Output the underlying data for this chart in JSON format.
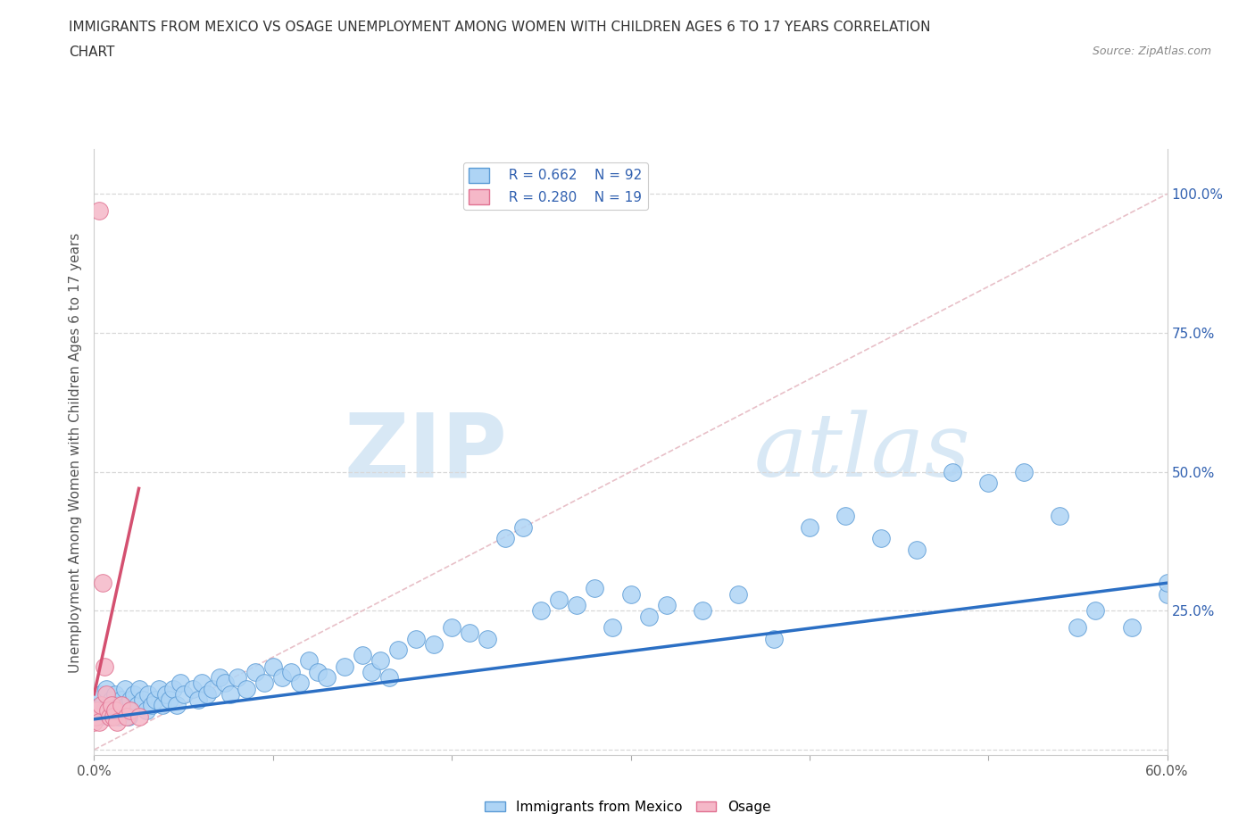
{
  "title_line1": "IMMIGRANTS FROM MEXICO VS OSAGE UNEMPLOYMENT AMONG WOMEN WITH CHILDREN AGES 6 TO 17 YEARS CORRELATION",
  "title_line2": "CHART",
  "source": "Source: ZipAtlas.com",
  "ylabel": "Unemployment Among Women with Children Ages 6 to 17 years",
  "xmin": 0.0,
  "xmax": 0.6,
  "ymin": -0.01,
  "ymax": 1.08,
  "yticks": [
    0.0,
    0.25,
    0.5,
    0.75,
    1.0
  ],
  "right_ytick_labels": [
    "",
    "25.0%",
    "50.0%",
    "75.0%",
    "100.0%"
  ],
  "xtick_vals": [
    0.0,
    0.1,
    0.2,
    0.3,
    0.4,
    0.5,
    0.6
  ],
  "xtick_labels": [
    "0.0%",
    "",
    "",
    "",
    "",
    "",
    "60.0%"
  ],
  "legend_r1": "R = 0.662",
  "legend_n1": "N = 92",
  "legend_r2": "R = 0.280",
  "legend_n2": "N = 19",
  "blue_color": "#aed4f5",
  "pink_color": "#f5b8c8",
  "blue_edge_color": "#5b9bd5",
  "pink_edge_color": "#e07090",
  "blue_line_color": "#2b6fc4",
  "pink_line_color": "#d45070",
  "watermark_color": "#d8e8f5",
  "blue_scatter_x": [
    0.001,
    0.002,
    0.003,
    0.004,
    0.005,
    0.006,
    0.007,
    0.008,
    0.009,
    0.01,
    0.011,
    0.012,
    0.013,
    0.014,
    0.015,
    0.016,
    0.017,
    0.018,
    0.019,
    0.02,
    0.022,
    0.024,
    0.025,
    0.027,
    0.029,
    0.03,
    0.032,
    0.034,
    0.036,
    0.038,
    0.04,
    0.042,
    0.044,
    0.046,
    0.048,
    0.05,
    0.055,
    0.058,
    0.06,
    0.063,
    0.066,
    0.07,
    0.073,
    0.076,
    0.08,
    0.085,
    0.09,
    0.095,
    0.1,
    0.105,
    0.11,
    0.115,
    0.12,
    0.125,
    0.13,
    0.14,
    0.15,
    0.155,
    0.16,
    0.165,
    0.17,
    0.18,
    0.19,
    0.2,
    0.21,
    0.22,
    0.23,
    0.24,
    0.25,
    0.26,
    0.27,
    0.28,
    0.29,
    0.3,
    0.31,
    0.32,
    0.34,
    0.36,
    0.38,
    0.4,
    0.42,
    0.44,
    0.46,
    0.48,
    0.5,
    0.52,
    0.54,
    0.55,
    0.56,
    0.58,
    0.6,
    0.6
  ],
  "blue_scatter_y": [
    0.07,
    0.09,
    0.06,
    0.1,
    0.08,
    0.07,
    0.11,
    0.08,
    0.06,
    0.09,
    0.07,
    0.1,
    0.08,
    0.06,
    0.09,
    0.07,
    0.11,
    0.08,
    0.06,
    0.09,
    0.1,
    0.08,
    0.11,
    0.09,
    0.07,
    0.1,
    0.08,
    0.09,
    0.11,
    0.08,
    0.1,
    0.09,
    0.11,
    0.08,
    0.12,
    0.1,
    0.11,
    0.09,
    0.12,
    0.1,
    0.11,
    0.13,
    0.12,
    0.1,
    0.13,
    0.11,
    0.14,
    0.12,
    0.15,
    0.13,
    0.14,
    0.12,
    0.16,
    0.14,
    0.13,
    0.15,
    0.17,
    0.14,
    0.16,
    0.13,
    0.18,
    0.2,
    0.19,
    0.22,
    0.21,
    0.2,
    0.38,
    0.4,
    0.25,
    0.27,
    0.26,
    0.29,
    0.22,
    0.28,
    0.24,
    0.26,
    0.25,
    0.28,
    0.2,
    0.4,
    0.42,
    0.38,
    0.36,
    0.5,
    0.48,
    0.5,
    0.42,
    0.22,
    0.25,
    0.22,
    0.28,
    0.3
  ],
  "pink_scatter_x": [
    0.0,
    0.001,
    0.002,
    0.003,
    0.003,
    0.004,
    0.005,
    0.006,
    0.007,
    0.008,
    0.009,
    0.01,
    0.011,
    0.012,
    0.013,
    0.015,
    0.018,
    0.02,
    0.025
  ],
  "pink_scatter_y": [
    0.05,
    0.06,
    0.07,
    0.97,
    0.05,
    0.08,
    0.3,
    0.15,
    0.1,
    0.07,
    0.06,
    0.08,
    0.06,
    0.07,
    0.05,
    0.08,
    0.06,
    0.07,
    0.06
  ],
  "blue_trend_x": [
    0.0,
    0.6
  ],
  "blue_trend_y": [
    0.055,
    0.3
  ],
  "pink_trend_x": [
    0.0,
    0.025
  ],
  "pink_trend_y": [
    0.1,
    0.47
  ]
}
